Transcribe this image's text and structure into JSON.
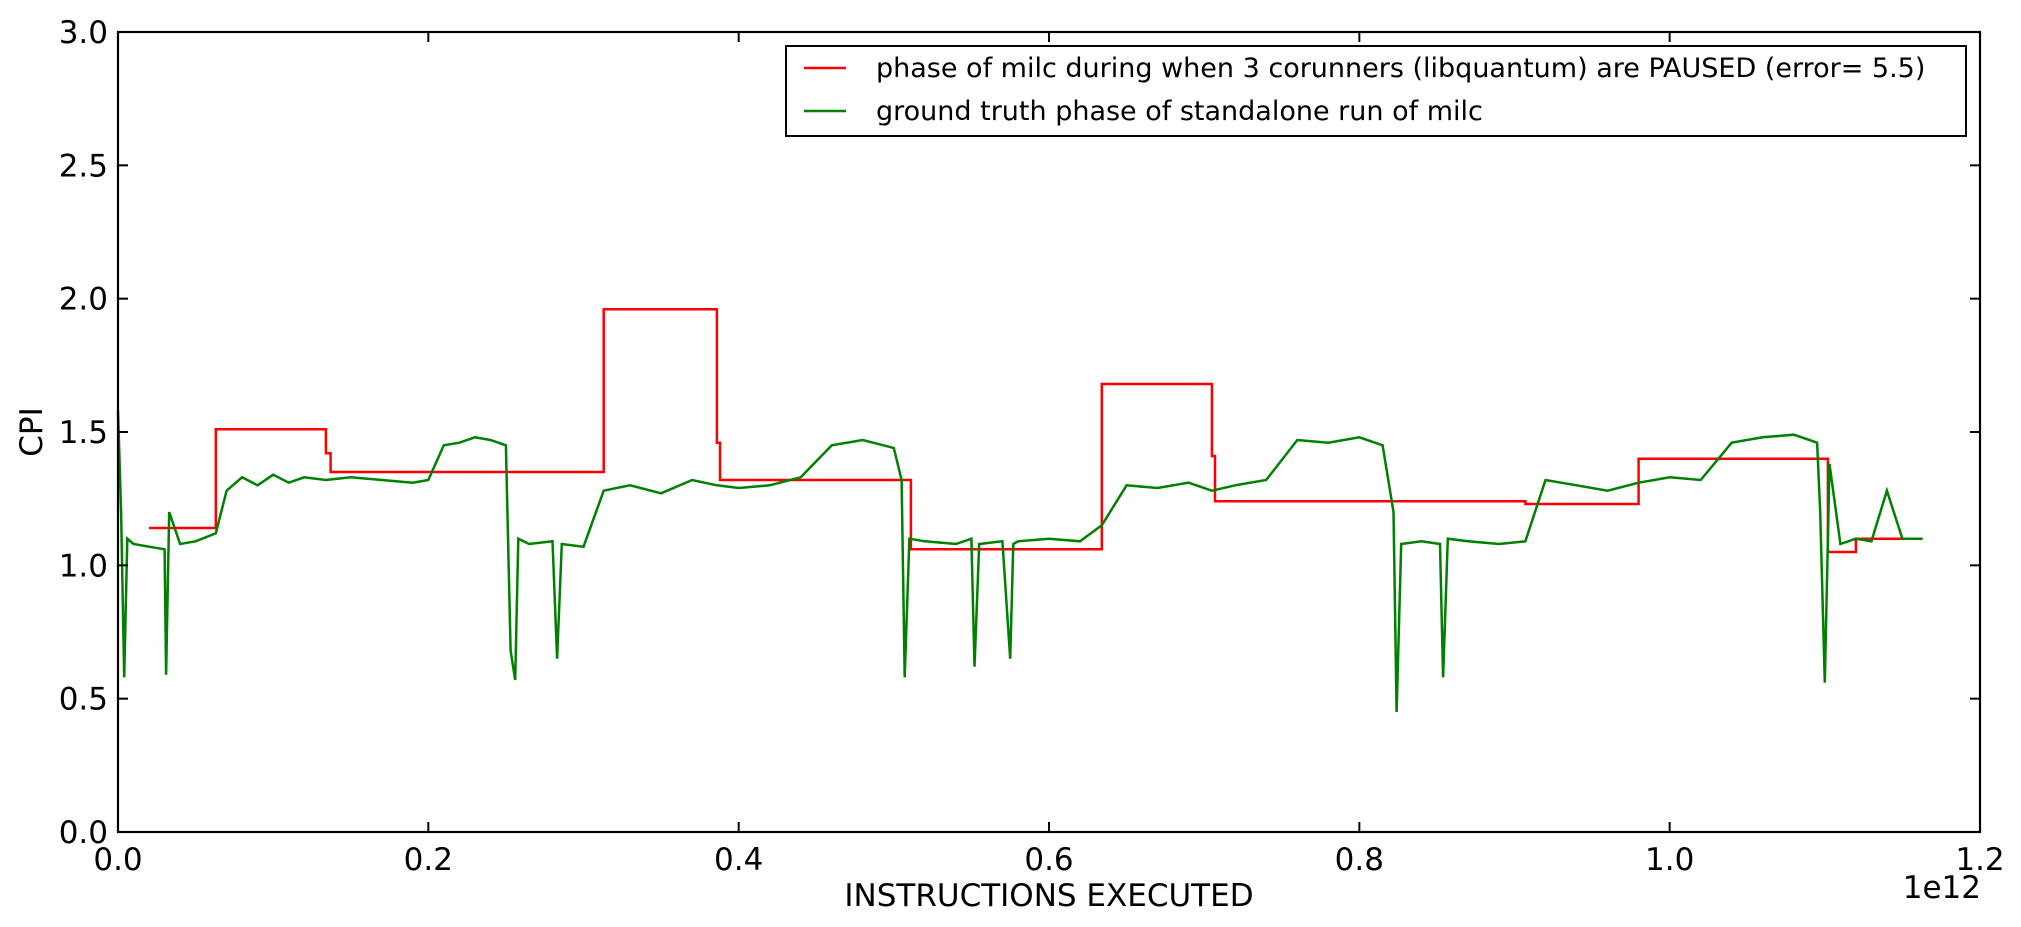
{
  "chart_data": {
    "type": "line",
    "title": "",
    "xlabel": "INSTRUCTIONS EXECUTED",
    "ylabel": "CPI",
    "x_offset_label": "1e12",
    "xlim": [
      0.0,
      1.2
    ],
    "ylim": [
      0.0,
      3.0
    ],
    "x_ticks": [
      "0.0",
      "0.2",
      "0.4",
      "0.6",
      "0.8",
      "1.0",
      "1.2"
    ],
    "y_ticks": [
      "0.0",
      "0.5",
      "1.0",
      "1.5",
      "2.0",
      "2.5",
      "3.0"
    ],
    "grid": false,
    "legend_position": "top-right",
    "series": [
      {
        "name": "phase of milc during when 3 corunners (libquantum) are PAUSED (error= 5.5)",
        "color": "#ff0000",
        "style": "step",
        "x": [
          0.02,
          0.063,
          0.063,
          0.134,
          0.134,
          0.137,
          0.137,
          0.313,
          0.313,
          0.386,
          0.386,
          0.388,
          0.388,
          0.511,
          0.511,
          0.634,
          0.634,
          0.705,
          0.705,
          0.707,
          0.707,
          0.907,
          0.907,
          0.98,
          0.98,
          1.102,
          1.102,
          1.12,
          1.12,
          1.163
        ],
        "y": [
          1.14,
          1.14,
          1.51,
          1.51,
          1.42,
          1.42,
          1.35,
          1.35,
          1.96,
          1.96,
          1.46,
          1.46,
          1.32,
          1.32,
          1.06,
          1.06,
          1.68,
          1.68,
          1.41,
          1.41,
          1.24,
          1.24,
          1.23,
          1.23,
          1.4,
          1.4,
          1.05,
          1.05,
          1.1,
          1.1
        ]
      },
      {
        "name": "ground truth phase of standalone run of milc",
        "color": "#008000",
        "style": "line",
        "x": [
          0.0,
          0.002,
          0.004,
          0.006,
          0.01,
          0.02,
          0.03,
          0.031,
          0.033,
          0.04,
          0.05,
          0.063,
          0.07,
          0.08,
          0.09,
          0.1,
          0.11,
          0.12,
          0.134,
          0.15,
          0.17,
          0.19,
          0.2,
          0.21,
          0.22,
          0.23,
          0.24,
          0.25,
          0.253,
          0.256,
          0.258,
          0.265,
          0.28,
          0.283,
          0.286,
          0.3,
          0.313,
          0.33,
          0.35,
          0.37,
          0.386,
          0.4,
          0.42,
          0.44,
          0.46,
          0.48,
          0.5,
          0.505,
          0.507,
          0.51,
          0.52,
          0.54,
          0.55,
          0.552,
          0.555,
          0.57,
          0.575,
          0.577,
          0.58,
          0.6,
          0.62,
          0.634,
          0.65,
          0.67,
          0.69,
          0.705,
          0.72,
          0.74,
          0.76,
          0.78,
          0.8,
          0.815,
          0.822,
          0.824,
          0.827,
          0.84,
          0.852,
          0.854,
          0.857,
          0.87,
          0.89,
          0.907,
          0.92,
          0.94,
          0.96,
          0.98,
          1.0,
          1.02,
          1.04,
          1.06,
          1.08,
          1.095,
          1.097,
          1.1,
          1.103,
          1.11,
          1.12,
          1.13,
          1.14,
          1.15,
          1.163
        ],
        "y": [
          1.58,
          1.2,
          0.58,
          1.1,
          1.08,
          1.07,
          1.06,
          0.59,
          1.2,
          1.08,
          1.09,
          1.12,
          1.28,
          1.33,
          1.3,
          1.34,
          1.31,
          1.33,
          1.32,
          1.33,
          1.32,
          1.31,
          1.32,
          1.45,
          1.46,
          1.48,
          1.47,
          1.45,
          0.68,
          0.57,
          1.1,
          1.08,
          1.09,
          0.65,
          1.08,
          1.07,
          1.28,
          1.3,
          1.27,
          1.32,
          1.3,
          1.29,
          1.3,
          1.33,
          1.45,
          1.47,
          1.44,
          1.32,
          0.58,
          1.1,
          1.09,
          1.08,
          1.1,
          0.62,
          1.08,
          1.09,
          0.65,
          1.08,
          1.09,
          1.1,
          1.09,
          1.15,
          1.3,
          1.29,
          1.31,
          1.28,
          1.3,
          1.32,
          1.47,
          1.46,
          1.48,
          1.45,
          1.2,
          0.45,
          1.08,
          1.09,
          1.08,
          0.58,
          1.1,
          1.09,
          1.08,
          1.09,
          1.32,
          1.3,
          1.28,
          1.31,
          1.33,
          1.32,
          1.46,
          1.48,
          1.49,
          1.46,
          1.2,
          0.56,
          1.38,
          1.08,
          1.1,
          1.09,
          1.28,
          1.1,
          1.1
        ]
      }
    ]
  }
}
